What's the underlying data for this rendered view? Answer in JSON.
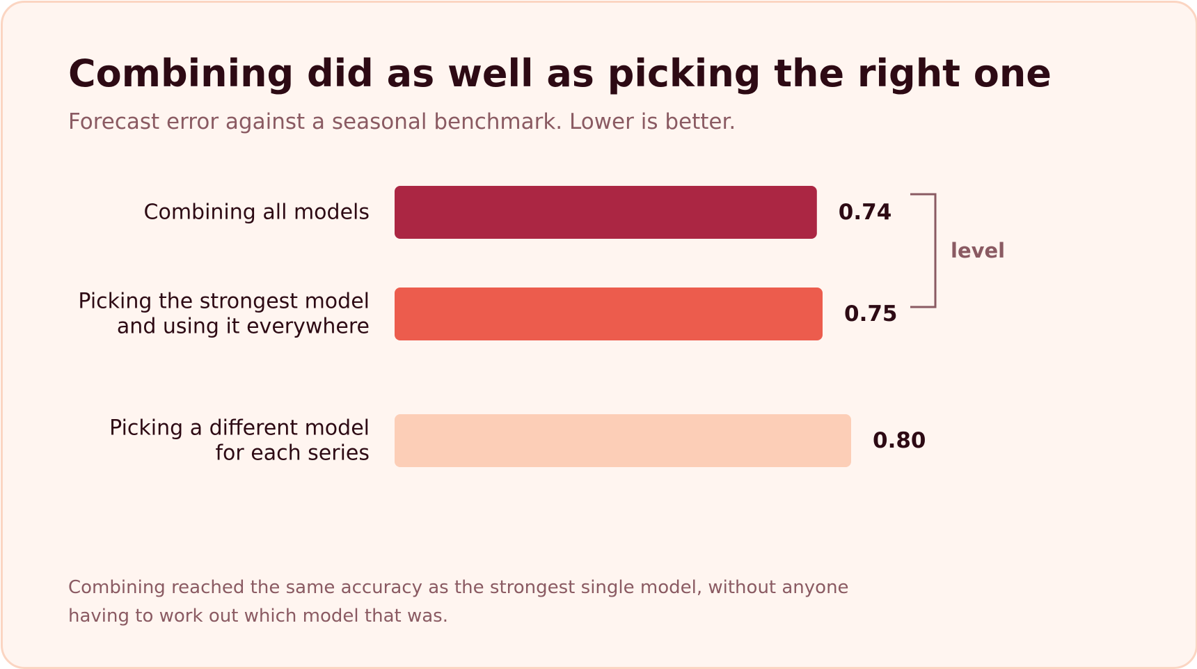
{
  "title": "Combining did as well as picking the right one",
  "subtitle": "Forecast error against a seasonal benchmark. Lower is better.",
  "footnote": "Combining reached the same accuracy as the strongest single model, without anyone having to work out which model that was.",
  "colors": {
    "background": "#fff5f0",
    "border": "#fbd5c2",
    "text_dark": "#2d0a14",
    "text_muted": "#8a5a62"
  },
  "chart_data": {
    "type": "bar",
    "orientation": "horizontal",
    "categories": [
      [
        "Combining all models"
      ],
      [
        "Picking the strongest model",
        "and using it everywhere"
      ],
      [
        "Picking a different model",
        "for each series"
      ]
    ],
    "values": [
      0.74,
      0.75,
      0.8
    ],
    "value_labels": [
      "0.74",
      "0.75",
      "0.80"
    ],
    "bar_colors": [
      "#ab2643",
      "#ec5c4d",
      "#fcceb7"
    ],
    "xlim": [
      0,
      0.8
    ],
    "grid": false,
    "bracket": {
      "label": "level",
      "spans_categories": [
        0,
        1
      ]
    }
  }
}
